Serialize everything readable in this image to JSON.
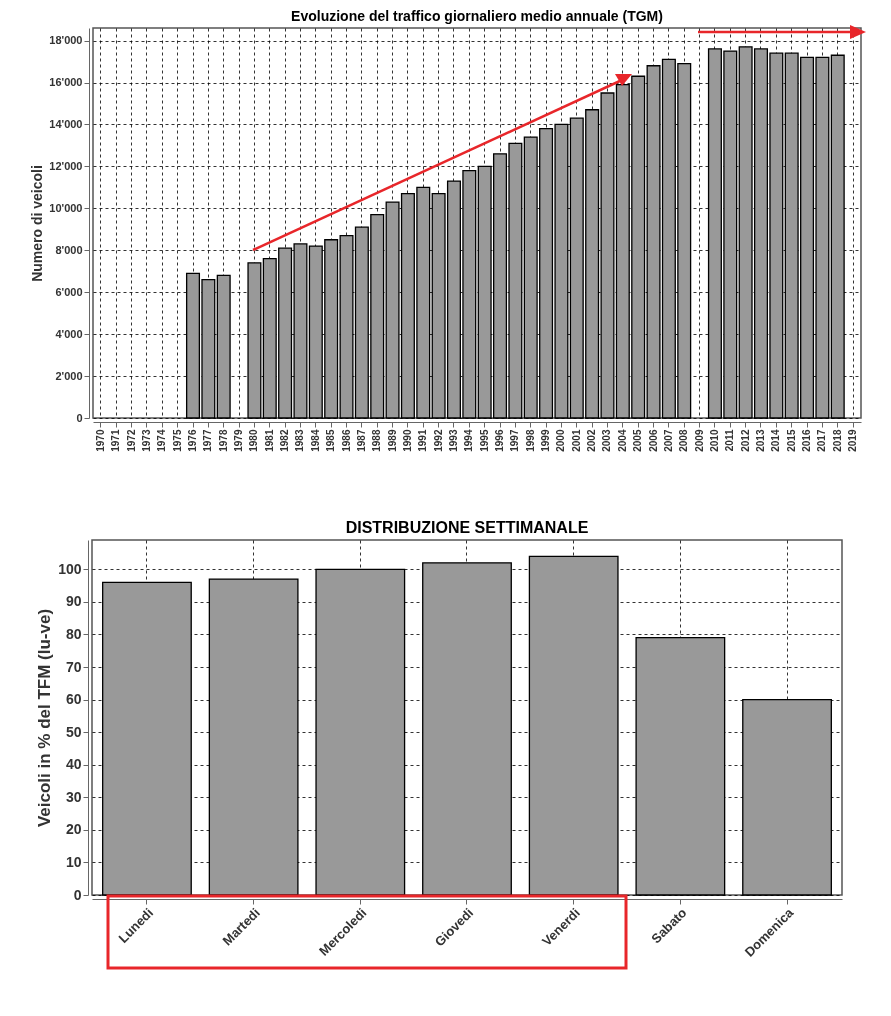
{
  "chart_data": [
    {
      "type": "bar",
      "title": "Evoluzione del traffico giornaliero medio annuale (TGM)",
      "ylabel": "Numero di veicoli",
      "categories": [
        "1970",
        "1971",
        "1972",
        "1973",
        "1974",
        "1975",
        "1976",
        "1977",
        "1978",
        "1979",
        "1980",
        "1981",
        "1982",
        "1983",
        "1984",
        "1985",
        "1986",
        "1987",
        "1988",
        "1989",
        "1990",
        "1991",
        "1992",
        "1993",
        "1994",
        "1995",
        "1996",
        "1997",
        "1998",
        "1999",
        "2000",
        "2001",
        "2002",
        "2003",
        "2004",
        "2005",
        "2006",
        "2007",
        "2008",
        "2009",
        "2010",
        "2011",
        "2012",
        "2013",
        "2014",
        "2015",
        "2016",
        "2017",
        "2018",
        "2019"
      ],
      "values": [
        null,
        null,
        null,
        null,
        null,
        null,
        6900,
        6600,
        6800,
        null,
        7400,
        7600,
        8100,
        8300,
        8200,
        8500,
        8700,
        9100,
        9700,
        10300,
        10700,
        11000,
        10700,
        11300,
        11800,
        12000,
        12600,
        13100,
        13400,
        13800,
        14000,
        14300,
        14700,
        15500,
        15900,
        16300,
        16800,
        17100,
        16900,
        null,
        17600,
        17500,
        17700,
        17600,
        17400,
        17400,
        17200,
        17200,
        17300,
        null
      ],
      "color": "#999999",
      "ylim": [
        0,
        18600
      ],
      "yticks": [
        0,
        {
          "value": 2000,
          "label": "2'000"
        },
        {
          "value": 4000,
          "label": "4'000"
        },
        {
          "value": 6000,
          "label": "6'000"
        },
        {
          "value": 8000,
          "label": "8'000"
        },
        {
          "value": 10000,
          "label": "10'000"
        },
        {
          "value": 12000,
          "label": "12'000"
        },
        {
          "value": 14000,
          "label": "14'000"
        },
        {
          "value": 16000,
          "label": "16'000"
        },
        {
          "value": 18000,
          "label": "18'000"
        }
      ],
      "grid": true,
      "line_style": "dashed"
    },
    {
      "type": "bar",
      "title": "DISTRIBUZIONE SETTIMANALE",
      "ylabel": "Veicoli in % del TFM (lu-ve)",
      "categories": [
        "Lunedi",
        "Martedi",
        "Mercoledi",
        "Giovedi",
        "Venerdi",
        "Sabato",
        "Domenica"
      ],
      "values": [
        96,
        97,
        100,
        102,
        104,
        79,
        60
      ],
      "color": "#999999",
      "ylim": [
        0,
        109
      ],
      "yticks": [
        0,
        10,
        20,
        30,
        40,
        50,
        60,
        70,
        80,
        90,
        100
      ],
      "grid": true,
      "line_style": "dashed"
    }
  ]
}
